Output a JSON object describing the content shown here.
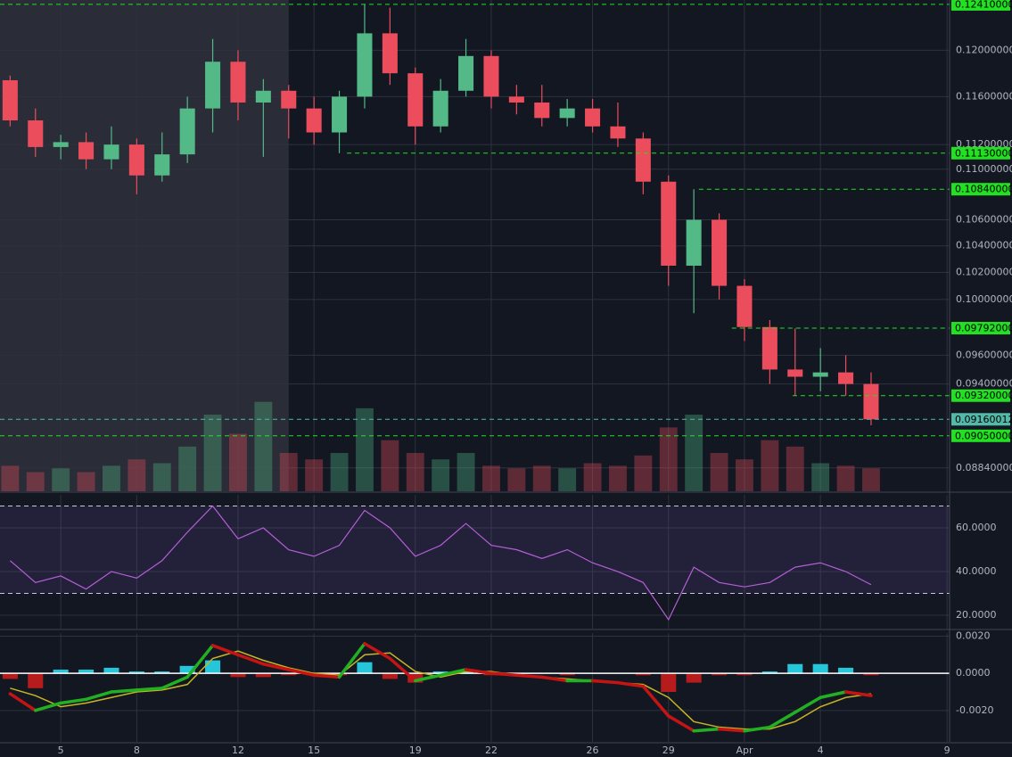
{
  "chart_data": [
    {
      "type": "candlestick",
      "x": [
        3,
        4,
        5,
        6,
        7,
        8,
        9,
        10,
        11,
        12,
        13,
        14,
        15,
        16,
        17,
        18,
        19,
        20,
        21,
        22,
        23,
        24,
        25,
        26,
        27,
        28,
        29,
        30,
        31,
        32,
        33,
        34,
        35,
        36,
        37
      ],
      "open": [
        0.1174,
        0.114,
        0.1118,
        0.1122,
        0.1108,
        0.112,
        0.1095,
        0.1112,
        0.115,
        0.119,
        0.1155,
        0.1165,
        0.115,
        0.113,
        0.116,
        0.1215,
        0.118,
        0.1135,
        0.1165,
        0.1195,
        0.116,
        0.1155,
        0.1142,
        0.115,
        0.1135,
        0.1125,
        0.109,
        0.1025,
        0.106,
        0.101,
        0.098,
        0.095,
        0.0945,
        0.0948,
        0.094
      ],
      "high": [
        0.1178,
        0.115,
        0.1128,
        0.113,
        0.1135,
        0.1125,
        0.113,
        0.116,
        0.121,
        0.12,
        0.1175,
        0.117,
        0.116,
        0.1165,
        0.1241,
        0.1238,
        0.1185,
        0.1175,
        0.121,
        0.12,
        0.117,
        0.117,
        0.1158,
        0.1158,
        0.1155,
        0.113,
        0.1095,
        0.1084,
        0.1065,
        0.1015,
        0.0985,
        0.0979,
        0.0965,
        0.096,
        0.0948
      ],
      "low": [
        0.1135,
        0.111,
        0.1108,
        0.11,
        0.11,
        0.108,
        0.109,
        0.1105,
        0.113,
        0.114,
        0.111,
        0.1125,
        0.112,
        0.1113,
        0.115,
        0.117,
        0.112,
        0.113,
        0.116,
        0.115,
        0.1145,
        0.1135,
        0.1135,
        0.113,
        0.1118,
        0.108,
        0.101,
        0.099,
        0.1,
        0.097,
        0.094,
        0.0932,
        0.0935,
        0.0932,
        0.0912
      ],
      "close": [
        0.114,
        0.1118,
        0.1122,
        0.1108,
        0.112,
        0.1095,
        0.1112,
        0.115,
        0.119,
        0.1155,
        0.1165,
        0.115,
        0.113,
        0.116,
        0.1215,
        0.118,
        0.1135,
        0.1165,
        0.1195,
        0.116,
        0.1155,
        0.1142,
        0.115,
        0.1135,
        0.1125,
        0.109,
        0.1025,
        0.106,
        0.101,
        0.098,
        0.095,
        0.0945,
        0.0948,
        0.094,
        0.0916
      ],
      "volume": [
        20,
        15,
        18,
        15,
        20,
        25,
        22,
        35,
        60,
        45,
        70,
        30,
        25,
        30,
        65,
        40,
        30,
        25,
        30,
        20,
        18,
        20,
        18,
        22,
        20,
        28,
        50,
        60,
        30,
        25,
        40,
        35,
        22,
        20,
        18
      ],
      "volume_lim": [
        0,
        100
      ],
      "up_color": "#53b987",
      "down_color": "#eb4d5c",
      "xlim": [
        2.6,
        40.1
      ],
      "ylim": [
        0.0869,
        0.1245
      ],
      "log": true,
      "yticks": [
        {
          "value": 0.12,
          "label": "0.12000000"
        },
        {
          "value": 0.116,
          "label": "0.11600000"
        },
        {
          "value": 0.112,
          "label": "0.11200000"
        },
        {
          "value": 0.11,
          "label": "0.11000000"
        },
        {
          "value": 0.106,
          "label": "0.10600000"
        },
        {
          "value": 0.104,
          "label": "0.10400000"
        },
        {
          "value": 0.102,
          "label": "0.10200000"
        },
        {
          "value": 0.1,
          "label": "0.10000000"
        },
        {
          "value": 0.096,
          "label": "0.09600000"
        },
        {
          "value": 0.094,
          "label": "0.09400000"
        },
        {
          "value": 0.0884,
          "label": "0.08840000"
        }
      ],
      "highlight": [
        2.6,
        14
      ],
      "levels": [
        {
          "value": 0.1241,
          "label": "0.12410000",
          "from": 2.6,
          "color": "#22e022"
        },
        {
          "value": 0.1113,
          "label": "0.11130000",
          "from": 16.3,
          "color": "#22e022"
        },
        {
          "value": 0.1084,
          "label": "0.10840000",
          "from": 30.2,
          "color": "#22e022"
        },
        {
          "value": 0.09792,
          "label": "0.09792000",
          "from": 31.5,
          "color": "#22e022"
        },
        {
          "value": 0.0932,
          "label": "0.09320000",
          "from": 33.9,
          "color": "#22e022"
        },
        {
          "value": 0.09160012,
          "label": "0.09160012",
          "from": 2.6,
          "color": "#53b9a8"
        },
        {
          "value": 0.0905,
          "label": "0.09050000",
          "from": 2.6,
          "color": "#22e022"
        }
      ]
    },
    {
      "type": "rsi",
      "x": [
        3,
        4,
        5,
        6,
        7,
        8,
        9,
        10,
        11,
        12,
        13,
        14,
        15,
        16,
        17,
        18,
        19,
        20,
        21,
        22,
        23,
        24,
        25,
        26,
        27,
        28,
        29,
        30,
        31,
        32,
        33,
        34,
        35,
        36,
        37
      ],
      "values": [
        45,
        35,
        38,
        32,
        40,
        37,
        45,
        58,
        70,
        55,
        60,
        50,
        47,
        52,
        68,
        60,
        47,
        52,
        62,
        52,
        50,
        46,
        50,
        44,
        40,
        35,
        18,
        42,
        35,
        33,
        35,
        42,
        44,
        40,
        34
      ],
      "color": "#b45fd6",
      "bands": [
        30,
        70
      ],
      "xlim": [
        2.6,
        40.1
      ],
      "ylim": [
        13.9,
        75.1
      ],
      "yticks": [
        {
          "value": 20,
          "label": "20.0000"
        },
        {
          "value": 40,
          "label": "40.0000"
        },
        {
          "value": 60,
          "label": "60.0000"
        }
      ]
    },
    {
      "type": "macd",
      "x": [
        3,
        4,
        5,
        6,
        7,
        8,
        9,
        10,
        11,
        12,
        13,
        14,
        15,
        16,
        17,
        18,
        19,
        20,
        21,
        22,
        23,
        24,
        25,
        26,
        27,
        28,
        29,
        30,
        31,
        32,
        33,
        34,
        35,
        36,
        37
      ],
      "macd": [
        -0.0011,
        -0.002,
        -0.0016,
        -0.0014,
        -0.001,
        -0.0009,
        -0.0008,
        -0.0002,
        0.0015,
        0.001,
        0.0005,
        0.0002,
        -0.0001,
        -0.0002,
        0.0016,
        0.0008,
        -0.0004,
        -0.0001,
        0.0002,
        0.0,
        -0.0001,
        -0.0002,
        -0.0004,
        -0.0004,
        -0.0005,
        -0.0007,
        -0.0023,
        -0.0031,
        -0.003,
        -0.0031,
        -0.0029,
        -0.0021,
        -0.0013,
        -0.001,
        -0.0012
      ],
      "signal": [
        -0.0008,
        -0.0012,
        -0.0018,
        -0.0016,
        -0.0013,
        -0.001,
        -0.0009,
        -0.0006,
        0.0008,
        0.0012,
        0.0007,
        0.0003,
        0.0,
        -0.0001,
        0.001,
        0.0011,
        0.0001,
        -0.0002,
        0.0001,
        0.0001,
        -0.0001,
        -0.0002,
        -0.0003,
        -0.0004,
        -0.0005,
        -0.0006,
        -0.0013,
        -0.0026,
        -0.0029,
        -0.003,
        -0.003,
        -0.0026,
        -0.0018,
        -0.0013,
        -0.0011
      ],
      "histogram": [
        -0.0003,
        -0.0008,
        0.0002,
        0.0002,
        0.0003,
        0.0001,
        0.0001,
        0.0004,
        0.0007,
        -0.0002,
        -0.0002,
        -0.0001,
        -0.0001,
        -0.0001,
        0.0006,
        -0.0003,
        -0.0005,
        0.0001,
        0.0001,
        -0.0001,
        0,
        0,
        -0.0001,
        0,
        0,
        -0.0001,
        -0.001,
        -0.0005,
        -0.0001,
        -0.0001,
        0.0001,
        0.0005,
        0.0005,
        0.0003,
        -0.0001
      ],
      "up_color": "#22b022",
      "down_color": "#c41414",
      "signal_color": "#c8b424",
      "hist_up_color": "#26c6da",
      "hist_down_color": "#b71c1c",
      "xlim": [
        2.6,
        40.1
      ],
      "ylim": [
        -0.00369,
        0.00217
      ],
      "yticks": [
        {
          "value": 0.002,
          "label": "0.0020"
        },
        {
          "value": 0,
          "label": "0.0000"
        },
        {
          "value": -0.002,
          "label": "-0.0020"
        }
      ],
      "xticks": [
        5,
        8,
        12,
        15,
        19,
        22,
        26,
        29,
        {
          "value": 32,
          "label": "Apr"
        },
        {
          "value": 35,
          "label": "4"
        },
        {
          "value": 40,
          "label": "9"
        }
      ]
    }
  ]
}
